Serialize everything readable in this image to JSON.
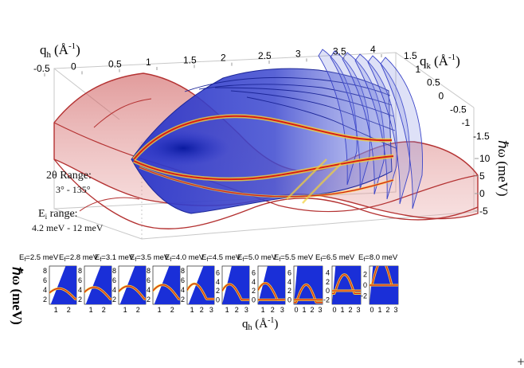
{
  "main_plot": {
    "type": "surface-3d",
    "x_axis": {
      "label": "q",
      "label_sub": "h",
      "unit_prefix": "(Å",
      "unit_sup": "-1",
      "unit_suffix": ")",
      "ticks": [
        "-0.5",
        "0",
        "0.5",
        "1",
        "1.5",
        "2",
        "2.5",
        "3",
        "3.5",
        "4"
      ]
    },
    "y_axis": {
      "label": "q",
      "label_sub": "k",
      "unit_prefix": "(Å",
      "unit_sup": "-1",
      "unit_suffix": ")",
      "ticks": [
        "1.5",
        "1",
        "0.5",
        "0",
        "-0.5",
        "-1",
        "-1.5"
      ]
    },
    "z_axis": {
      "label": "ℏω (meV)",
      "ticks": [
        "10",
        "5",
        "0",
        "-5"
      ]
    },
    "annotation_2theta": {
      "line1": "2θ Range:",
      "line2": "3° - 135°"
    },
    "annotation_ei": {
      "line1_main": "E",
      "line1_sub": "i",
      "line1_rest": " range:",
      "line2": "4.2 meV - 12 meV"
    }
  },
  "chart_data": {
    "type": "heatmap",
    "panels": [
      {
        "label_main": "E",
        "label_sub": "f",
        "label_rest": "=2.5 meV",
        "xticks": [
          "1",
          "2"
        ],
        "yticks": [
          "8",
          "6",
          "4",
          "2"
        ],
        "ylim": [
          1,
          9
        ],
        "xlim": [
          0.5,
          2.6
        ]
      },
      {
        "label_main": "E",
        "label_sub": "f",
        "label_rest": "=2.8 meV",
        "xticks": [
          "1",
          "2"
        ],
        "yticks": [
          "8",
          "6",
          "4",
          "2"
        ],
        "ylim": [
          1,
          9
        ],
        "xlim": [
          0.5,
          2.6
        ]
      },
      {
        "label_main": "E",
        "label_sub": "f",
        "label_rest": "=3.1 meV",
        "xticks": [
          "1",
          "2"
        ],
        "yticks": [
          "8",
          "6",
          "4",
          "2"
        ],
        "ylim": [
          1,
          9
        ],
        "xlim": [
          0.5,
          2.6
        ]
      },
      {
        "label_main": "E",
        "label_sub": "f",
        "label_rest": "=3.5 meV",
        "xticks": [
          "1",
          "2"
        ],
        "yticks": [
          "8",
          "6",
          "4",
          "2"
        ],
        "ylim": [
          1,
          9
        ],
        "xlim": [
          0.5,
          2.6
        ]
      },
      {
        "label_main": "E",
        "label_sub": "f",
        "label_rest": "=4.0 meV",
        "xticks": [
          "1",
          "2",
          "3"
        ],
        "yticks": [
          "8",
          "6",
          "4",
          "2"
        ],
        "ylim": [
          1,
          9
        ],
        "xlim": [
          0.5,
          3.3
        ]
      },
      {
        "label_main": "E",
        "label_sub": "f",
        "label_rest": "=4.5 meV",
        "xticks": [
          "1",
          "2",
          "3"
        ],
        "yticks": [
          "6",
          "4",
          "2",
          "0"
        ],
        "ylim": [
          -1,
          7.5
        ],
        "xlim": [
          0.5,
          3.3
        ]
      },
      {
        "label_main": "E",
        "label_sub": "f",
        "label_rest": "=5.0 meV",
        "xticks": [
          "1",
          "2",
          "3"
        ],
        "yticks": [
          "6",
          "4",
          "2",
          "0"
        ],
        "ylim": [
          -1,
          7.5
        ],
        "xlim": [
          0.5,
          3.3
        ]
      },
      {
        "label_main": "E",
        "label_sub": "f",
        "label_rest": "=5.5 meV",
        "xticks": [
          "0",
          "1",
          "2",
          "3"
        ],
        "yticks": [
          "6",
          "4",
          "2",
          "0"
        ],
        "ylim": [
          -1,
          7.5
        ],
        "xlim": [
          -0.3,
          3.3
        ]
      },
      {
        "label_main": "E",
        "label_sub": "f",
        "label_rest": "=6.5 meV",
        "xticks": [
          "0",
          "1",
          "2",
          "3"
        ],
        "yticks": [
          "4",
          "2",
          "0",
          "-2"
        ],
        "ylim": [
          -3,
          5.5
        ],
        "xlim": [
          -0.3,
          3.3
        ]
      },
      {
        "label_main": "E",
        "label_sub": "f",
        "label_rest": "=8.0 meV",
        "xticks": [
          "0",
          "1",
          "2",
          "3"
        ],
        "yticks": [
          "2",
          "0",
          "-2"
        ],
        "ylim": [
          -3.5,
          3.5
        ],
        "xlim": [
          -0.3,
          3.3
        ]
      }
    ],
    "ylabel": "ℏω (meV)",
    "xlabel_main": "q",
    "xlabel_sub": "h",
    "xlabel_unit": " (Å",
    "xlabel_sup": "-1",
    "xlabel_close": ")",
    "colors": {
      "background": "#1a2fd8",
      "ridge_outer": "#f2d23a",
      "ridge_core": "#d81e14",
      "surface_red": "#c94a4a",
      "surface_blue": "#3a44c8"
    }
  }
}
